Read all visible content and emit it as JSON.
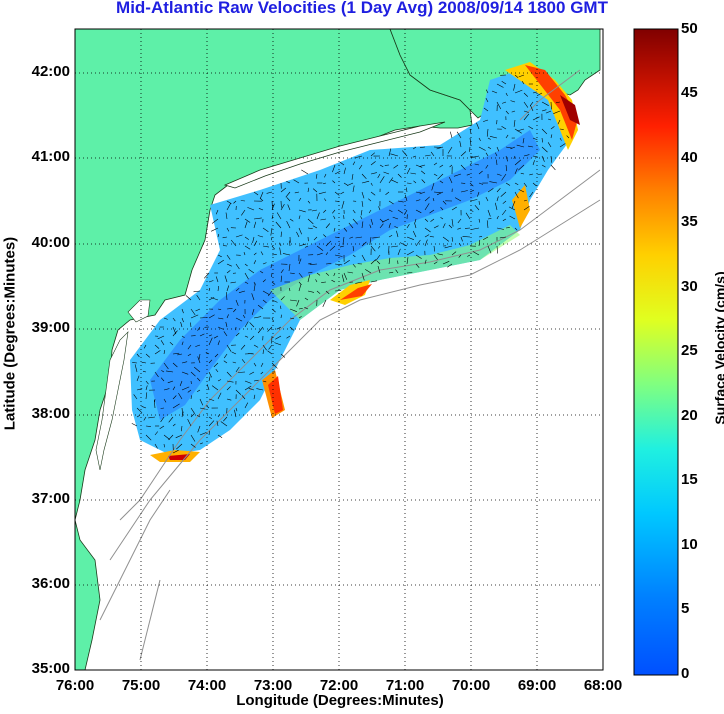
{
  "title": "Mid-Atlantic Raw Velocities (1 Day Avg) 2008/09/14 1800 GMT",
  "xlabel": "Longitude (Degrees:Minutes)",
  "ylabel": "Latitude (Degrees:Minutes)",
  "colorbar_label": "Surface Velocity (cm/s)",
  "x_ticks": [
    "76:00",
    "75:00",
    "74:00",
    "73:00",
    "72:00",
    "71:00",
    "70:00",
    "69:00",
    "68:00"
  ],
  "y_ticks": [
    "42:00",
    "41:00",
    "40:00",
    "39:00",
    "38:00",
    "37:00",
    "36:00",
    "35:00"
  ],
  "colorbar_ticks": [
    "50",
    "45",
    "40",
    "35",
    "30",
    "25",
    "20",
    "15",
    "10",
    "5",
    "0"
  ],
  "colors": {
    "title": "#1f1fe0",
    "land": "#5ef0a8",
    "ocean_low": "#1e90ff",
    "ocean_high": "#8b0000",
    "grid": "#000000",
    "bathymetry": "#909090"
  },
  "map": {
    "lon_range": [
      "76:00 W",
      "68:00 W"
    ],
    "lat_range": [
      "35:00 N",
      "42:30 N"
    ],
    "colormap": "jet",
    "color_range_cms": [
      0,
      50
    ],
    "grid": true
  }
}
